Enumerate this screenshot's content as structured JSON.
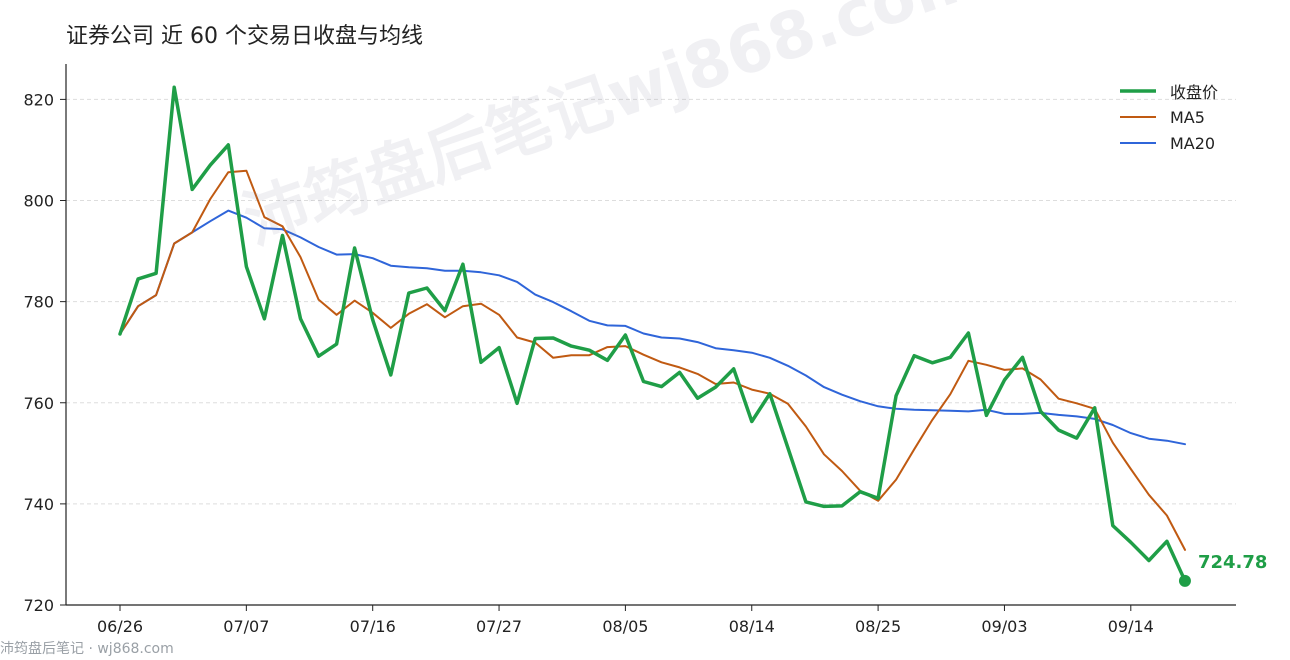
{
  "chart_data": {
    "type": "line",
    "title": "证券公司 近 60 个交易日收盘与均线",
    "ylim": [
      720,
      827
    ],
    "yticks": [
      720,
      740,
      760,
      780,
      800,
      820
    ],
    "xtick_labels": [
      "06/26",
      "07/07",
      "07/16",
      "07/27",
      "08/05",
      "08/14",
      "08/25",
      "09/03",
      "09/14"
    ],
    "xtick_index": [
      0,
      7,
      14,
      21,
      28,
      35,
      42,
      49,
      56
    ],
    "grid": "horizontal-dashed",
    "legend_position": "top-right",
    "end_label": "724.78",
    "colors": {
      "close": "#1f9e47",
      "ma5": "#c05a12",
      "ma20": "#2f65d9"
    },
    "series": [
      {
        "name": "收盘价",
        "values": [
          773.6,
          784.5,
          785.6,
          822.4,
          802.2,
          807.0,
          811.0,
          786.9,
          776.6,
          793.1,
          776.6,
          769.2,
          771.6,
          790.6,
          776.4,
          765.5,
          781.7,
          782.7,
          778.2,
          787.4,
          768.0,
          770.9,
          759.9,
          772.7,
          772.8,
          771.2,
          770.4,
          768.4,
          773.4,
          764.2,
          763.2,
          766.0,
          760.9,
          763.1,
          766.7,
          756.3,
          761.8,
          751.1,
          740.4,
          739.5,
          739.6,
          742.4,
          741.1,
          761.4,
          769.3,
          767.9,
          769.0,
          773.8,
          757.5,
          764.5,
          769.0,
          758.3,
          754.6,
          753.0,
          759.0,
          735.7,
          732.4,
          728.8,
          732.6,
          724.78
        ]
      },
      {
        "name": "MA5",
        "values": [
          773.6,
          779.1,
          781.3,
          791.5,
          793.7,
          800.3,
          805.6,
          805.9,
          796.7,
          794.9,
          788.8,
          780.4,
          777.4,
          780.2,
          777.8,
          774.8,
          777.6,
          779.5,
          776.9,
          779.1,
          779.6,
          777.4,
          772.9,
          771.9,
          768.9,
          769.4,
          769.4,
          771.0,
          771.2,
          769.5,
          768.0,
          767.0,
          765.7,
          763.7,
          764.0,
          762.6,
          761.8,
          759.8,
          755.3,
          749.8,
          746.5,
          742.6,
          740.6,
          744.8,
          750.8,
          756.6,
          761.7,
          768.3,
          767.5,
          766.5,
          766.8,
          764.6,
          760.8,
          759.9,
          758.8,
          752.1,
          746.9,
          741.8,
          737.7,
          730.9
        ]
      },
      {
        "name": "MA20",
        "values": [
          773.6,
          779.1,
          781.3,
          791.5,
          793.7,
          795.9,
          798.0,
          796.6,
          794.5,
          794.3,
          792.7,
          790.8,
          789.3,
          789.4,
          788.6,
          787.1,
          786.8,
          786.6,
          786.1,
          786.1,
          785.8,
          785.2,
          783.9,
          781.4,
          779.9,
          778.1,
          776.2,
          775.3,
          775.2,
          773.7,
          772.9,
          772.7,
          772.0,
          770.8,
          770.4,
          769.9,
          768.9,
          767.3,
          765.4,
          763.1,
          761.6,
          760.3,
          759.3,
          758.8,
          758.6,
          758.5,
          758.4,
          758.3,
          758.6,
          757.8,
          757.8,
          758.0,
          757.6,
          757.3,
          756.8,
          755.6,
          754.0,
          752.9,
          752.5,
          751.8
        ]
      }
    ]
  },
  "footer": "沛筠盘后笔记 · wj868.com",
  "watermark": "沛筠盘后笔记wj868.com"
}
